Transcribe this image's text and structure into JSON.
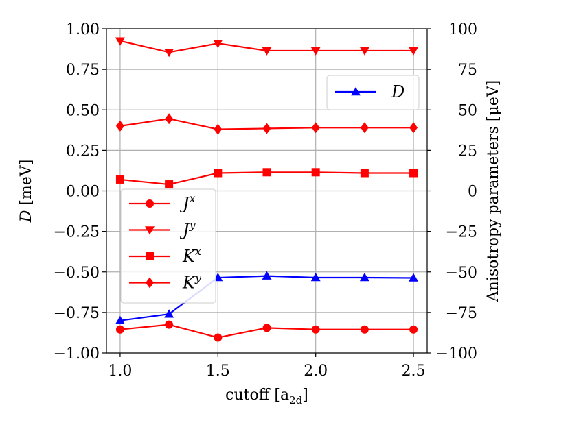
{
  "chart_data": {
    "type": "line",
    "xlabel": "cutoff [a",
    "xlabel_sub": "2d",
    "xlabel_close": "]",
    "ylabel_left_var": "D",
    "ylabel_left_unit": " [meV]",
    "ylabel_right": "Anisotropy parameters [μeV]",
    "x": [
      1.0,
      1.25,
      1.5,
      1.75,
      2.0,
      2.25,
      2.5
    ],
    "xlim": [
      0.93,
      2.57
    ],
    "ylim_left": [
      -1.0,
      1.0
    ],
    "ylim_right": [
      -100,
      100
    ],
    "x_ticks": [
      1.0,
      1.5,
      2.0,
      2.5
    ],
    "x_tick_labels": [
      "1.0",
      "1.5",
      "2.0",
      "2.5"
    ],
    "y_left_ticks": [
      1.0,
      0.75,
      0.5,
      0.25,
      0.0,
      -0.25,
      -0.5,
      -0.75,
      -1.0
    ],
    "y_left_tick_labels": [
      "1.00",
      "0.75",
      "0.50",
      "0.25",
      "0.00",
      "−0.25",
      "−0.50",
      "−0.75",
      "−1.00"
    ],
    "y_right_ticks": [
      100,
      75,
      50,
      25,
      0,
      -25,
      -50,
      -75,
      -100
    ],
    "y_right_tick_labels": [
      "100",
      "75",
      "50",
      "25",
      "0",
      "−25",
      "−50",
      "−75",
      "−100"
    ],
    "grid": true,
    "series_left": [
      {
        "name": "D",
        "color": "#0000ff",
        "marker": "triangle-up",
        "values": [
          -0.8,
          -0.76,
          -0.535,
          -0.525,
          -0.535,
          -0.535,
          -0.537
        ]
      }
    ],
    "series_right": [
      {
        "name": "J",
        "superscript": "x",
        "color": "#ff0000",
        "marker": "circle",
        "values": [
          -85.5,
          -82.5,
          -90.5,
          -84.5,
          -85.5,
          -85.5,
          -85.5
        ]
      },
      {
        "name": "J",
        "superscript": "y",
        "color": "#ff0000",
        "marker": "triangle-down",
        "values": [
          92.5,
          85.5,
          91.0,
          86.5,
          86.5,
          86.5,
          86.5
        ]
      },
      {
        "name": "K",
        "superscript": "x",
        "color": "#ff0000",
        "marker": "square",
        "values": [
          7.0,
          4.0,
          11.0,
          11.5,
          11.5,
          11.0,
          11.0
        ]
      },
      {
        "name": "K",
        "superscript": "y",
        "color": "#ff0000",
        "marker": "diamond",
        "values": [
          40.0,
          44.5,
          38.0,
          38.5,
          39.0,
          39.0,
          39.0
        ]
      }
    ],
    "legend_left": {
      "placement": "top-right",
      "entries": [
        "D"
      ]
    },
    "legend_right": {
      "placement": "lower-left",
      "entries": [
        "Jx",
        "Jy",
        "Kx",
        "Ky"
      ]
    }
  }
}
